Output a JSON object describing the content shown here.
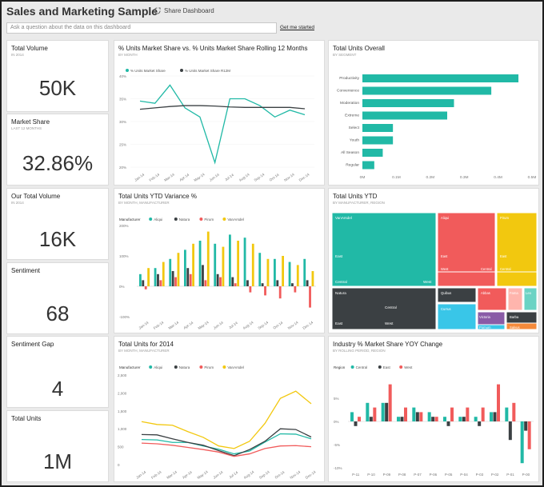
{
  "header": {
    "title": "Sales and Marketing Sample",
    "share_label": "Share Dashboard"
  },
  "qa": {
    "placeholder": "Ask a question about the data on this dashboard",
    "get_started": "Get me started"
  },
  "kpis": [
    {
      "title": "Total Volume",
      "subtitle": "IN 2014",
      "value": "50K"
    },
    {
      "title": "Market Share",
      "subtitle": "LAST 12 MONTHS",
      "value": "32.86%"
    },
    {
      "title": "Our Total Volume",
      "subtitle": "IN 2014",
      "value": "16K"
    },
    {
      "title": "Sentiment",
      "subtitle": "",
      "value": "68"
    },
    {
      "title": "Sentiment Gap",
      "subtitle": "",
      "value": "4"
    },
    {
      "title": "Total Units",
      "subtitle": "",
      "value": "1M"
    }
  ],
  "colors": {
    "teal": "#21b9a6",
    "dark": "#3b4043",
    "red": "#f15b5b",
    "yellow": "#f2c80f",
    "grey": "#555"
  },
  "chart_data": [
    {
      "type": "line",
      "title": "% Units Market Share vs. % Units Market Share Rolling 12 Months",
      "subtitle": "BY MONTH",
      "categories": [
        "Jan-14",
        "Feb-14",
        "Mar-14",
        "Apr-14",
        "May-14",
        "Jun-14",
        "Jul-14",
        "Aug-14",
        "Sep-14",
        "Oct-14",
        "Nov-14",
        "Dec-14"
      ],
      "series": [
        {
          "name": "% Units Market Share",
          "color": "#21b9a6",
          "values": [
            34.5,
            34,
            38,
            33,
            31,
            21,
            35,
            35,
            33.5,
            31,
            32.5,
            31.5
          ]
        },
        {
          "name": "% Units Market Share R12M",
          "color": "#3b4043",
          "values": [
            32.7,
            33,
            33.3,
            33.5,
            33.5,
            33.4,
            33.2,
            33.1,
            33.1,
            33.1,
            33.1,
            32.8
          ]
        }
      ],
      "yticks": [
        "40%",
        "35%",
        "30%",
        "25%",
        "20%"
      ],
      "ylim": [
        20,
        40
      ]
    },
    {
      "type": "bar",
      "title": "Total Units Overall",
      "subtitle": "BY SEGMENT",
      "categories": [
        "Productivity",
        "Convenience",
        "Moderation",
        "Extreme",
        "Select",
        "Youth",
        "All Season",
        "Regular"
      ],
      "values": [
        0.46,
        0.38,
        0.27,
        0.25,
        0.09,
        0.09,
        0.06,
        0.035
      ],
      "xticks": [
        "0M",
        "0.1M",
        "0.2M",
        "0.3M",
        "0.4M",
        "0.5M"
      ],
      "xlim": [
        0,
        0.5
      ],
      "color": "#21b9a6"
    },
    {
      "type": "bar",
      "title": "Total Units YTD Variance %",
      "subtitle": "BY MONTH, MANUFACTURER",
      "legend_title": "Manufacturer",
      "categories": [
        "Jan-14",
        "Feb-14",
        "Mar-14",
        "Apr-14",
        "May-14",
        "Jun-14",
        "Jul-14",
        "Aug-14",
        "Sep-14",
        "Oct-14",
        "Nov-14",
        "Dec-14"
      ],
      "series": [
        {
          "name": "Aliqui",
          "color": "#21b9a6",
          "values": [
            40,
            60,
            90,
            120,
            150,
            140,
            170,
            160,
            110,
            90,
            80,
            90
          ]
        },
        {
          "name": "Natura",
          "color": "#3b4043",
          "values": [
            20,
            40,
            50,
            60,
            70,
            40,
            30,
            20,
            10,
            20,
            10,
            20
          ]
        },
        {
          "name": "Pirum",
          "color": "#f15b5b",
          "values": [
            -10,
            20,
            30,
            40,
            20,
            30,
            10,
            -20,
            -30,
            -40,
            -20,
            -70
          ]
        },
        {
          "name": "VanArsdel",
          "color": "#f2c80f",
          "values": [
            60,
            80,
            110,
            140,
            180,
            130,
            150,
            140,
            90,
            100,
            70,
            50
          ]
        }
      ],
      "yticks": [
        "200%",
        "100%",
        "0%",
        "-100%"
      ],
      "ylim": [
        -100,
        200
      ]
    },
    {
      "type": "treemap",
      "title": "Total Units YTD",
      "subtitle": "BY MANUFACTURER, REGION",
      "labels": [
        "VanArsdel",
        "East",
        "Central",
        "West",
        "Natura",
        "Central",
        "East",
        "West",
        "Aliqui",
        "East",
        "West",
        "Central",
        "Pirum",
        "East",
        "Central",
        "Quibus",
        "Abbas",
        "Fama",
        "Leo",
        "Currus",
        "Victoria",
        "Barba",
        "Pomum",
        "Salvus"
      ]
    },
    {
      "type": "line",
      "title": "Total Units for 2014",
      "subtitle": "BY MONTH, MANUFACTURER",
      "legend_title": "Manufacturer",
      "categories": [
        "Jan-14",
        "Feb-14",
        "Mar-14",
        "Apr-14",
        "May-14",
        "Jun-14",
        "Jul-14",
        "Aug-14",
        "Sep-14",
        "Oct-14",
        "Nov-14",
        "Dec-14"
      ],
      "series": [
        {
          "name": "Aliqui",
          "color": "#21b9a6",
          "values": [
            700,
            690,
            620,
            620,
            520,
            430,
            300,
            380,
            630,
            860,
            850,
            720
          ]
        },
        {
          "name": "Natura",
          "color": "#3b4043",
          "values": [
            840,
            830,
            720,
            620,
            540,
            390,
            250,
            420,
            650,
            1000,
            980,
            770
          ]
        },
        {
          "name": "Pirum",
          "color": "#f15b5b",
          "values": [
            600,
            580,
            540,
            480,
            420,
            350,
            230,
            300,
            450,
            520,
            530,
            500
          ]
        },
        {
          "name": "VanArsdel",
          "color": "#f2c80f",
          "values": [
            1200,
            1120,
            1100,
            920,
            760,
            520,
            450,
            650,
            1150,
            1850,
            2050,
            1700
          ]
        }
      ],
      "yticks": [
        "2,500",
        "2,000",
        "1,500",
        "1,000",
        "500",
        "0"
      ],
      "ylim": [
        0,
        2500
      ]
    },
    {
      "type": "bar",
      "title": "Industry % Market Share YOY Change",
      "subtitle": "BY ROLLING PERIOD, REGION",
      "legend_title": "Region",
      "categories": [
        "P-11",
        "P-10",
        "P-09",
        "P-08",
        "P-07",
        "P-06",
        "P-05",
        "P-04",
        "P-03",
        "P-02",
        "P-01",
        "P-00"
      ],
      "series": [
        {
          "name": "Central",
          "color": "#21b9a6",
          "values": [
            2,
            4,
            4,
            1,
            3,
            2,
            1,
            1,
            1,
            2,
            3,
            -9
          ]
        },
        {
          "name": "East",
          "color": "#3b4043",
          "values": [
            -1,
            1,
            4,
            1,
            2,
            1,
            -1,
            1,
            -1,
            2,
            -4,
            -2
          ]
        },
        {
          "name": "West",
          "color": "#f15b5b",
          "values": [
            1,
            3,
            8,
            3,
            2,
            1,
            3,
            3,
            3,
            8,
            4,
            -6
          ]
        }
      ],
      "yticks": [
        "5%",
        "0%",
        "-5%",
        "-10%"
      ],
      "ylim": [
        -10,
        10
      ]
    }
  ]
}
